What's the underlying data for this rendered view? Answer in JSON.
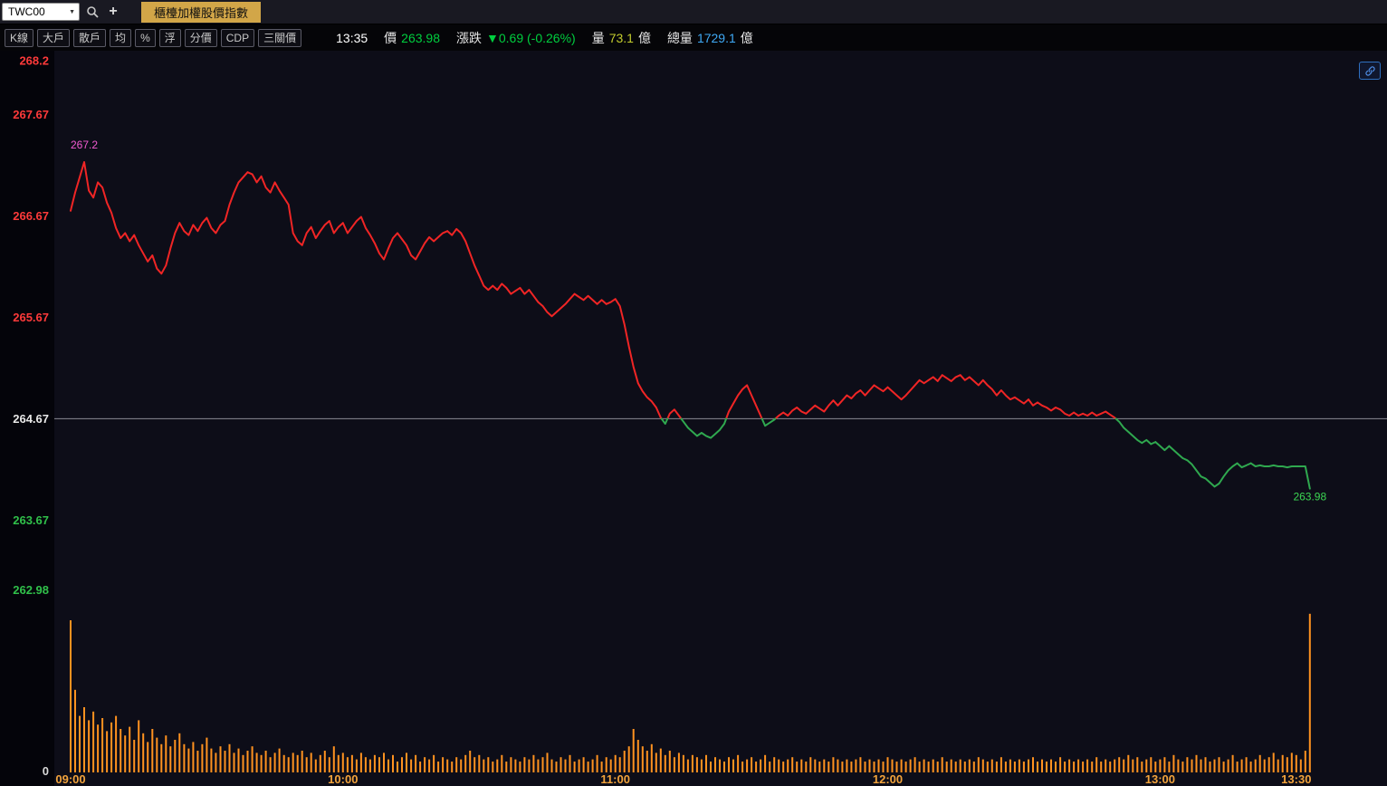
{
  "topbar": {
    "symbol": "TWC00",
    "tab_label": "櫃檯加權股價指數"
  },
  "toolbar": {
    "buttons": [
      "K線",
      "大戶",
      "散戶",
      "均",
      "%",
      "浮",
      "分價",
      "CDP",
      "三關價"
    ]
  },
  "quote": {
    "time": "13:35",
    "price_label": "價",
    "price": "263.98",
    "change_label": "漲跌",
    "change": "▼0.69 (-0.26%)",
    "volume_label": "量",
    "volume": "73.1",
    "volume_unit": "億",
    "total_label": "總量",
    "total": "1729.1",
    "total_unit": "億"
  },
  "colors": {
    "up": "#f02525",
    "down": "#2fa84f",
    "volume": "#ff9220",
    "axis_up": "#ff3a3a",
    "axis_ref": "#e8e8e8",
    "axis_down": "#30c04a",
    "axis_time": "#f2a33c",
    "axis_zero": "#d8d8d8",
    "reference_line": "#8a8a92",
    "annotation_high": "#f25ad2",
    "annotation_last": "#3cd653",
    "tab_active_bg": "#d2a648",
    "quote_green": "#00cf3f",
    "quote_yellow": "#c3cc2e",
    "quote_cyan": "#3fa9f5"
  },
  "chart_data": {
    "type": "line",
    "session_start": "09:00",
    "session_end": "13:30",
    "interval_minutes": 1,
    "reference_price": 264.67,
    "ylim": [
      262.98,
      268.2
    ],
    "volume_ylim": [
      0,
      75
    ],
    "volume_axis_zero_label": "0",
    "high_point": {
      "minute": 3,
      "price": 267.2,
      "label": "267.2"
    },
    "last_point": {
      "price": 263.98,
      "label": "263.98"
    },
    "y_ticks": [
      {
        "label": "268.2",
        "value": 268.2,
        "role": "up"
      },
      {
        "label": "267.67",
        "value": 267.67,
        "role": "up"
      },
      {
        "label": "266.67",
        "value": 266.67,
        "role": "up"
      },
      {
        "label": "265.67",
        "value": 265.67,
        "role": "up"
      },
      {
        "label": "264.67",
        "value": 264.67,
        "role": "ref"
      },
      {
        "label": "263.67",
        "value": 263.67,
        "role": "down"
      },
      {
        "label": "262.98",
        "value": 262.98,
        "role": "down"
      }
    ],
    "x_ticks": [
      {
        "label": "09:00",
        "minute": 0
      },
      {
        "label": "10:00",
        "minute": 60
      },
      {
        "label": "11:00",
        "minute": 120
      },
      {
        "label": "12:00",
        "minute": 180
      },
      {
        "label": "13:00",
        "minute": 240
      },
      {
        "label": "13:30",
        "minute": 270
      }
    ],
    "price_series": [
      266.72,
      266.9,
      267.05,
      267.2,
      266.92,
      266.85,
      267.0,
      266.95,
      266.8,
      266.7,
      266.55,
      266.45,
      266.5,
      266.42,
      266.48,
      266.38,
      266.3,
      266.22,
      266.28,
      266.15,
      266.1,
      266.18,
      266.35,
      266.5,
      266.6,
      266.52,
      266.48,
      266.58,
      266.52,
      266.6,
      266.65,
      266.55,
      266.5,
      266.58,
      266.62,
      266.78,
      266.9,
      267.0,
      267.05,
      267.1,
      267.08,
      267.0,
      267.06,
      266.95,
      266.9,
      267.0,
      266.92,
      266.85,
      266.78,
      266.5,
      266.42,
      266.38,
      266.5,
      266.56,
      266.45,
      266.52,
      266.58,
      266.62,
      266.5,
      266.56,
      266.6,
      266.5,
      266.56,
      266.62,
      266.66,
      266.55,
      266.48,
      266.4,
      266.3,
      266.24,
      266.35,
      266.45,
      266.5,
      266.44,
      266.38,
      266.28,
      266.24,
      266.32,
      266.4,
      266.46,
      266.42,
      266.46,
      266.5,
      266.52,
      266.48,
      266.54,
      266.5,
      266.42,
      266.3,
      266.18,
      266.08,
      265.98,
      265.94,
      265.98,
      265.94,
      266.0,
      265.96,
      265.9,
      265.93,
      265.96,
      265.9,
      265.94,
      265.88,
      265.82,
      265.78,
      265.72,
      265.68,
      265.72,
      265.76,
      265.8,
      265.85,
      265.9,
      265.87,
      265.84,
      265.88,
      265.84,
      265.8,
      265.84,
      265.8,
      265.82,
      265.85,
      265.78,
      265.6,
      265.38,
      265.18,
      265.02,
      264.94,
      264.88,
      264.84,
      264.78,
      264.68,
      264.62,
      264.72,
      264.76,
      264.7,
      264.64,
      264.58,
      264.54,
      264.5,
      264.53,
      264.5,
      264.48,
      264.52,
      264.56,
      264.62,
      264.74,
      264.82,
      264.9,
      264.96,
      265.0,
      264.9,
      264.8,
      264.7,
      264.6,
      264.63,
      264.66,
      264.7,
      264.73,
      264.7,
      264.75,
      264.78,
      264.74,
      264.72,
      264.76,
      264.8,
      264.77,
      264.74,
      264.8,
      264.85,
      264.8,
      264.85,
      264.9,
      264.87,
      264.92,
      264.95,
      264.9,
      264.95,
      265.0,
      264.97,
      264.94,
      264.98,
      264.94,
      264.9,
      264.86,
      264.9,
      264.95,
      265.0,
      265.05,
      265.02,
      265.05,
      265.08,
      265.04,
      265.1,
      265.07,
      265.04,
      265.08,
      265.1,
      265.05,
      265.08,
      265.04,
      265.0,
      265.05,
      265.0,
      264.96,
      264.9,
      264.95,
      264.9,
      264.86,
      264.88,
      264.85,
      264.82,
      264.86,
      264.8,
      264.83,
      264.8,
      264.78,
      264.75,
      264.78,
      264.76,
      264.72,
      264.7,
      264.73,
      264.7,
      264.72,
      264.7,
      264.73,
      264.7,
      264.72,
      264.74,
      264.71,
      264.68,
      264.64,
      264.58,
      264.54,
      264.5,
      264.46,
      264.43,
      264.46,
      264.42,
      264.44,
      264.4,
      264.36,
      264.4,
      264.36,
      264.32,
      264.28,
      264.26,
      264.22,
      264.16,
      264.1,
      264.08,
      264.04,
      264.0,
      264.03,
      264.1,
      264.16,
      264.2,
      264.23,
      264.19,
      264.21,
      264.23,
      264.2,
      264.21,
      264.2,
      264.2,
      264.21,
      264.2,
      264.2,
      264.19,
      264.2,
      264.2,
      264.2,
      264.2,
      263.98
    ],
    "volume_series": [
      70,
      38,
      26,
      30,
      24,
      28,
      22,
      25,
      19,
      23,
      26,
      20,
      17,
      21,
      15,
      24,
      18,
      14,
      20,
      16,
      13,
      17,
      12,
      15,
      18,
      13,
      11,
      14,
      10,
      13,
      16,
      11,
      9,
      12,
      10,
      13,
      9,
      11,
      8,
      10,
      12,
      9,
      8,
      10,
      7,
      9,
      11,
      8,
      7,
      9,
      8,
      10,
      7,
      9,
      6,
      8,
      10,
      7,
      12,
      8,
      9,
      7,
      8,
      6,
      9,
      7,
      6,
      8,
      7,
      9,
      6,
      8,
      5,
      7,
      9,
      6,
      8,
      5,
      7,
      6,
      8,
      5,
      7,
      6,
      5,
      7,
      6,
      8,
      10,
      7,
      8,
      6,
      7,
      5,
      6,
      8,
      5,
      7,
      6,
      5,
      7,
      6,
      8,
      6,
      7,
      9,
      6,
      5,
      7,
      6,
      8,
      5,
      6,
      7,
      5,
      6,
      8,
      5,
      7,
      6,
      8,
      7,
      10,
      12,
      20,
      15,
      12,
      10,
      13,
      9,
      11,
      8,
      10,
      7,
      9,
      8,
      6,
      8,
      7,
      6,
      8,
      5,
      7,
      6,
      5,
      7,
      6,
      8,
      5,
      6,
      7,
      5,
      6,
      8,
      5,
      7,
      6,
      5,
      6,
      7,
      5,
      6,
      5,
      7,
      6,
      5,
      6,
      5,
      7,
      6,
      5,
      6,
      5,
      6,
      7,
      5,
      6,
      5,
      6,
      5,
      7,
      6,
      5,
      6,
      5,
      6,
      7,
      5,
      6,
      5,
      6,
      5,
      7,
      5,
      6,
      5,
      6,
      5,
      6,
      5,
      7,
      6,
      5,
      6,
      5,
      7,
      5,
      6,
      5,
      6,
      5,
      6,
      7,
      5,
      6,
      5,
      6,
      5,
      7,
      5,
      6,
      5,
      6,
      5,
      6,
      5,
      7,
      5,
      6,
      5,
      6,
      7,
      6,
      8,
      6,
      7,
      5,
      6,
      7,
      5,
      6,
      7,
      5,
      8,
      6,
      5,
      7,
      6,
      8,
      6,
      7,
      5,
      6,
      7,
      5,
      6,
      8,
      5,
      6,
      7,
      5,
      6,
      8,
      6,
      7,
      9,
      6,
      8,
      7,
      9,
      8,
      6,
      10,
      73
    ]
  }
}
